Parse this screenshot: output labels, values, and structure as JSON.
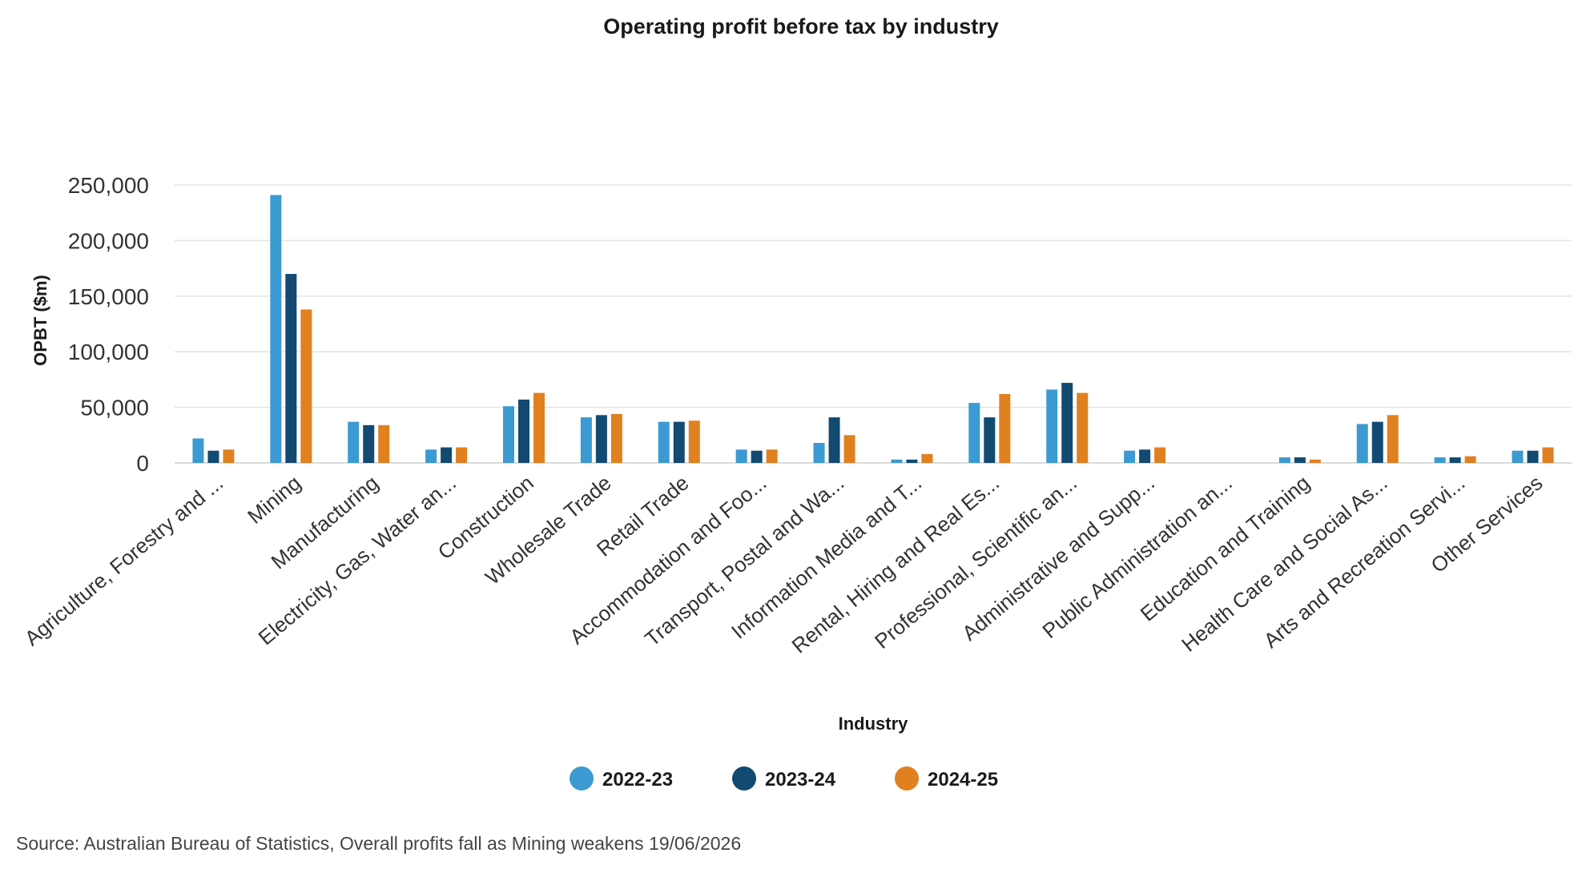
{
  "chart_data": {
    "type": "bar",
    "title": "Operating profit before tax by industry",
    "xlabel": "Industry",
    "ylabel": "OPBT ($m)",
    "ylim": [
      0,
      250000
    ],
    "yticks": [
      0,
      50000,
      100000,
      150000,
      200000,
      250000
    ],
    "ytick_labels": [
      "0",
      "50,000",
      "100,000",
      "150,000",
      "200,000",
      "250,000"
    ],
    "grid": true,
    "legend_position": "bottom",
    "categories": [
      "Agriculture, Forestry and ...",
      "Mining",
      "Manufacturing",
      "Electricity, Gas, Water an...",
      "Construction",
      "Wholesale Trade",
      "Retail Trade",
      "Accommodation and Foo...",
      "Transport, Postal and Wa...",
      "Information Media and T...",
      "Rental, Hiring and Real Es...",
      "Professional, Scientific an...",
      "Administrative and Supp...",
      "Public Administration an...",
      "Education and Training",
      "Health Care and Social As...",
      "Arts and Recreation Servi...",
      "Other Services"
    ],
    "series": [
      {
        "name": "2022-23",
        "color": "#3b9ad2",
        "values": [
          22000,
          241000,
          37000,
          12000,
          51000,
          41000,
          37000,
          12000,
          18000,
          3000,
          54000,
          66000,
          11000,
          0,
          5000,
          35000,
          5000,
          11000
        ]
      },
      {
        "name": "2023-24",
        "color": "#124a72",
        "values": [
          11000,
          170000,
          34000,
          14000,
          57000,
          43000,
          37000,
          11000,
          41000,
          3000,
          41000,
          72000,
          12000,
          0,
          5000,
          37000,
          5000,
          11000
        ]
      },
      {
        "name": "2024-25",
        "color": "#e0801f",
        "values": [
          12000,
          138000,
          34000,
          14000,
          63000,
          44000,
          38000,
          12000,
          25000,
          8000,
          62000,
          63000,
          14000,
          0,
          3000,
          43000,
          6000,
          14000
        ]
      }
    ]
  },
  "source": "Source: Australian Bureau of Statistics, Overall profits fall as Mining weakens 19/06/2026"
}
